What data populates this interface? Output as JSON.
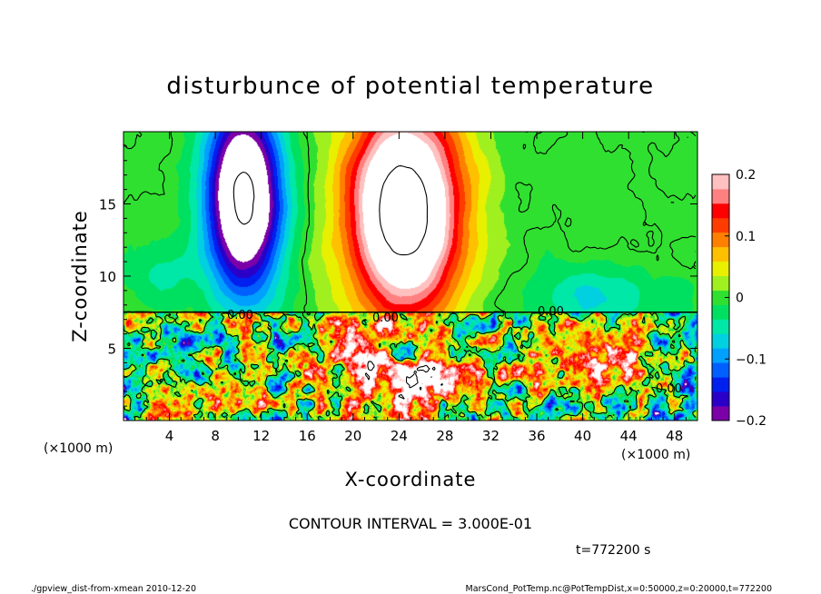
{
  "chart_data": {
    "type": "heatmap",
    "title": "disturbunce of potential temperature",
    "xlabel": "X-coordinate",
    "ylabel": "Z-coordinate",
    "x_unit": "(×1000 m)",
    "y_unit": "(×1000 m)",
    "xlim": [
      0,
      50
    ],
    "ylim": [
      0,
      20
    ],
    "x_ticks": [
      4,
      8,
      12,
      16,
      20,
      24,
      28,
      32,
      36,
      40,
      44,
      48
    ],
    "y_ticks": [
      5,
      10,
      15
    ],
    "colorbar": {
      "range": [
        -0.2,
        0.2
      ],
      "tick_labels": [
        "0.2",
        "0.1",
        "0",
        "−0.1",
        "−0.2"
      ],
      "tick_values": [
        0.2,
        0.1,
        0,
        -0.1,
        -0.2
      ],
      "colors": [
        "#7b00a8",
        "#2a00c8",
        "#0020f0",
        "#0060ff",
        "#00a0ff",
        "#00d0e0",
        "#00e8a8",
        "#00e060",
        "#30e030",
        "#a0f020",
        "#e8f000",
        "#ffc000",
        "#ff8000",
        "#ff3c00",
        "#ff0000",
        "#ff8080",
        "#ffc0c0"
      ]
    },
    "contour_labels": [
      "0.00",
      "0.00",
      "0.00",
      "0.00"
    ],
    "features": [
      {
        "kind": "negative",
        "x": 10.5,
        "z": 15.5,
        "sx": 3.2,
        "sz": 6.5,
        "amp": -0.32
      },
      {
        "kind": "positive",
        "x": 24.5,
        "z": 14.5,
        "sx": 4.8,
        "sz": 7.0,
        "amp": 0.36
      },
      {
        "kind": "negative",
        "x": 41,
        "z": 8.5,
        "sx": 6,
        "sz": 2.2,
        "amp": -0.06
      },
      {
        "kind": "negative",
        "x": 3.5,
        "z": 10,
        "sx": 3,
        "sz": 2,
        "amp": -0.04
      }
    ],
    "boundary_z": 7.5
  },
  "contour_interval": "CONTOUR INTERVAL = 3.000E-01",
  "time_label": "t=772200 s",
  "footer": {
    "left": "./gpview_dist-from-xmean  2010-12-20",
    "right": "MarsCond_PotTemp.nc@PotTempDist,x=0:50000,z=0:20000,t=772200"
  }
}
